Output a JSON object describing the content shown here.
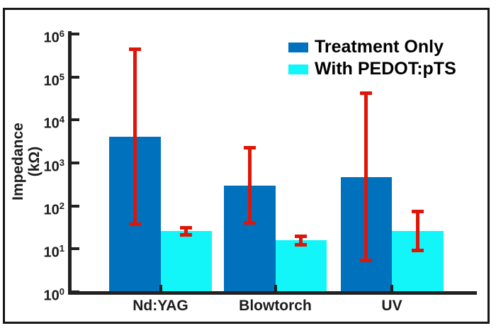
{
  "figure": {
    "background_color": "#ffffff",
    "frame_border_color": "#161616",
    "axis_color": "#212121"
  },
  "chart_data": {
    "type": "bar",
    "yscale": "log",
    "title": "",
    "xlabel": "",
    "ylabel": "Impedance (kΩ)",
    "ylabel_lines": [
      "Impedance",
      "(kΩ)"
    ],
    "ylim": [
      1,
      1000000
    ],
    "ytick_exponents": [
      0,
      1,
      2,
      3,
      4,
      5,
      6
    ],
    "categories": [
      "Nd:YAG",
      "Blowtorch",
      "UV"
    ],
    "series": [
      {
        "name": "Treatment Only",
        "color": "#0072bd",
        "values": [
          4000,
          300,
          470
        ],
        "err_low": [
          37,
          40,
          5.4
        ],
        "err_high": [
          450000,
          2300,
          42000
        ]
      },
      {
        "name": "With PEDOT:pTS",
        "color": "#12f5f9",
        "values": [
          26,
          16,
          26
        ],
        "err_low": [
          21,
          12,
          9
        ],
        "err_high": [
          32,
          20,
          75
        ]
      }
    ],
    "error_bar_color": "#e01507",
    "legend_position": "upper-right",
    "grid": false
  }
}
